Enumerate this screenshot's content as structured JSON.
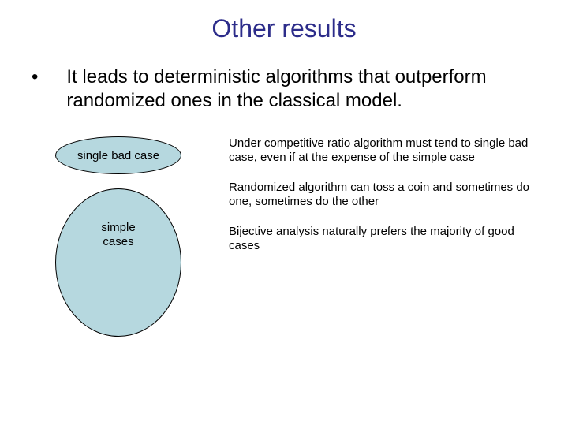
{
  "title": {
    "text": "Other results",
    "color": "#2c2c8a"
  },
  "bullet": {
    "text": "It leads to deterministic algorithms that outperform randomized ones in the classical model."
  },
  "diagram": {
    "small_ellipse": {
      "label": "single bad case",
      "fill": "#b6d8df",
      "border": "#000000"
    },
    "big_ellipse": {
      "label": "simple\ncases",
      "fill": "#b6d8df",
      "border": "#000000"
    }
  },
  "paragraphs": {
    "p1": "Under competitive ratio algorithm must tend to single bad case, even if at the expense of the simple case",
    "p2": "Randomized algorithm can toss a coin and sometimes do one, sometimes do the other",
    "p3": "Bijective analysis naturally prefers the majority of good cases"
  }
}
